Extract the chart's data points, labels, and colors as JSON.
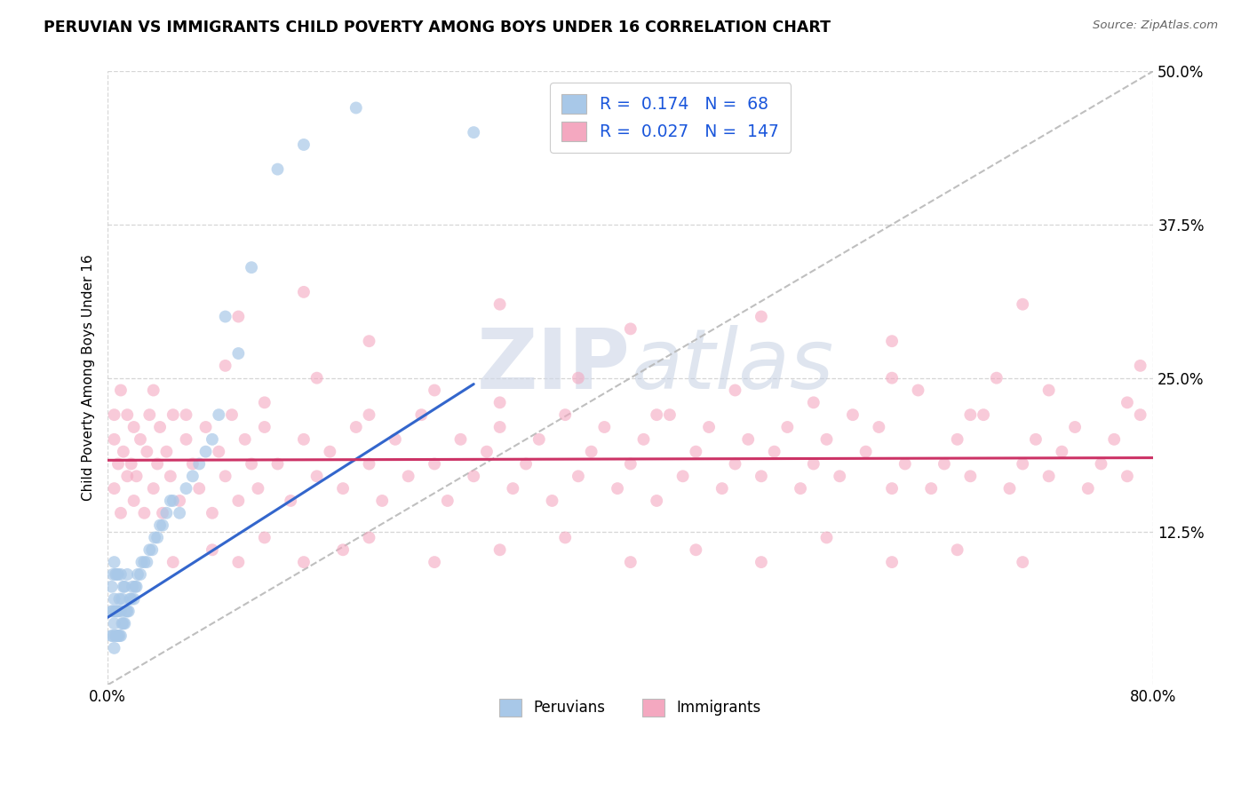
{
  "title": "PERUVIAN VS IMMIGRANTS CHILD POVERTY AMONG BOYS UNDER 16 CORRELATION CHART",
  "source": "Source: ZipAtlas.com",
  "ylabel": "Child Poverty Among Boys Under 16",
  "xlim": [
    0.0,
    0.8
  ],
  "ylim": [
    0.0,
    0.5
  ],
  "xtick_positions": [
    0.0,
    0.8
  ],
  "xticklabels": [
    "0.0%",
    "80.0%"
  ],
  "ytick_positions": [
    0.125,
    0.25,
    0.375,
    0.5
  ],
  "ytick_labels": [
    "12.5%",
    "25.0%",
    "37.5%",
    "50.0%"
  ],
  "legend_r_peru": "0.174",
  "legend_n_peru": "68",
  "legend_r_immig": "0.027",
  "legend_n_immig": "147",
  "color_peru": "#a8c8e8",
  "color_immig": "#f4a8c0",
  "line_peru": "#3366cc",
  "line_immig": "#cc3366",
  "line_diagonal": "#b8b8b8",
  "watermark_zip": "ZIP",
  "watermark_atlas": "atlas",
  "peru_x": [
    0.003,
    0.003,
    0.003,
    0.004,
    0.004,
    0.004,
    0.005,
    0.005,
    0.005,
    0.005,
    0.006,
    0.006,
    0.006,
    0.007,
    0.007,
    0.007,
    0.008,
    0.008,
    0.008,
    0.009,
    0.009,
    0.01,
    0.01,
    0.01,
    0.011,
    0.011,
    0.012,
    0.012,
    0.013,
    0.013,
    0.014,
    0.015,
    0.015,
    0.016,
    0.017,
    0.018,
    0.019,
    0.02,
    0.021,
    0.022,
    0.023,
    0.025,
    0.026,
    0.028,
    0.03,
    0.032,
    0.034,
    0.036,
    0.038,
    0.04,
    0.042,
    0.045,
    0.048,
    0.05,
    0.055,
    0.06,
    0.065,
    0.07,
    0.075,
    0.08,
    0.085,
    0.09,
    0.1,
    0.11,
    0.13,
    0.15,
    0.19,
    0.28
  ],
  "peru_y": [
    0.04,
    0.06,
    0.08,
    0.04,
    0.06,
    0.09,
    0.03,
    0.05,
    0.07,
    0.1,
    0.04,
    0.06,
    0.09,
    0.04,
    0.06,
    0.09,
    0.04,
    0.06,
    0.09,
    0.04,
    0.07,
    0.04,
    0.06,
    0.09,
    0.05,
    0.07,
    0.05,
    0.08,
    0.05,
    0.08,
    0.06,
    0.06,
    0.09,
    0.06,
    0.07,
    0.07,
    0.08,
    0.07,
    0.08,
    0.08,
    0.09,
    0.09,
    0.1,
    0.1,
    0.1,
    0.11,
    0.11,
    0.12,
    0.12,
    0.13,
    0.13,
    0.14,
    0.15,
    0.15,
    0.14,
    0.16,
    0.17,
    0.18,
    0.19,
    0.2,
    0.22,
    0.3,
    0.27,
    0.34,
    0.42,
    0.44,
    0.47,
    0.45
  ],
  "immig_x": [
    0.005,
    0.005,
    0.005,
    0.008,
    0.01,
    0.01,
    0.012,
    0.015,
    0.015,
    0.018,
    0.02,
    0.02,
    0.022,
    0.025,
    0.028,
    0.03,
    0.032,
    0.035,
    0.038,
    0.04,
    0.042,
    0.045,
    0.048,
    0.05,
    0.055,
    0.06,
    0.065,
    0.07,
    0.075,
    0.08,
    0.085,
    0.09,
    0.095,
    0.1,
    0.105,
    0.11,
    0.115,
    0.12,
    0.13,
    0.14,
    0.15,
    0.16,
    0.17,
    0.18,
    0.19,
    0.2,
    0.21,
    0.22,
    0.23,
    0.24,
    0.25,
    0.26,
    0.27,
    0.28,
    0.29,
    0.3,
    0.31,
    0.32,
    0.33,
    0.34,
    0.35,
    0.36,
    0.37,
    0.38,
    0.39,
    0.4,
    0.41,
    0.42,
    0.43,
    0.44,
    0.45,
    0.46,
    0.47,
    0.48,
    0.49,
    0.5,
    0.51,
    0.52,
    0.53,
    0.54,
    0.55,
    0.56,
    0.57,
    0.58,
    0.59,
    0.6,
    0.61,
    0.62,
    0.63,
    0.64,
    0.65,
    0.66,
    0.67,
    0.68,
    0.69,
    0.7,
    0.71,
    0.72,
    0.73,
    0.74,
    0.75,
    0.76,
    0.77,
    0.78,
    0.79,
    0.79,
    0.05,
    0.08,
    0.1,
    0.12,
    0.15,
    0.18,
    0.2,
    0.25,
    0.3,
    0.35,
    0.4,
    0.45,
    0.5,
    0.55,
    0.6,
    0.65,
    0.7,
    0.035,
    0.06,
    0.09,
    0.12,
    0.16,
    0.2,
    0.25,
    0.3,
    0.36,
    0.42,
    0.48,
    0.54,
    0.6,
    0.66,
    0.72,
    0.78,
    0.1,
    0.15,
    0.2,
    0.3,
    0.4,
    0.5,
    0.6,
    0.7,
    0.78,
    0.25,
    0.35,
    0.45,
    0.55,
    0.65,
    0.75
  ],
  "immig_y": [
    0.2,
    0.16,
    0.22,
    0.18,
    0.24,
    0.14,
    0.19,
    0.17,
    0.22,
    0.18,
    0.15,
    0.21,
    0.17,
    0.2,
    0.14,
    0.19,
    0.22,
    0.16,
    0.18,
    0.21,
    0.14,
    0.19,
    0.17,
    0.22,
    0.15,
    0.2,
    0.18,
    0.16,
    0.21,
    0.14,
    0.19,
    0.17,
    0.22,
    0.15,
    0.2,
    0.18,
    0.16,
    0.21,
    0.18,
    0.15,
    0.2,
    0.17,
    0.19,
    0.16,
    0.21,
    0.18,
    0.15,
    0.2,
    0.17,
    0.22,
    0.18,
    0.15,
    0.2,
    0.17,
    0.19,
    0.21,
    0.16,
    0.18,
    0.2,
    0.15,
    0.22,
    0.17,
    0.19,
    0.21,
    0.16,
    0.18,
    0.2,
    0.15,
    0.22,
    0.17,
    0.19,
    0.21,
    0.16,
    0.18,
    0.2,
    0.17,
    0.19,
    0.21,
    0.16,
    0.18,
    0.2,
    0.17,
    0.22,
    0.19,
    0.21,
    0.16,
    0.18,
    0.24,
    0.16,
    0.18,
    0.2,
    0.17,
    0.22,
    0.25,
    0.16,
    0.18,
    0.2,
    0.17,
    0.19,
    0.21,
    0.16,
    0.18,
    0.2,
    0.17,
    0.22,
    0.26,
    0.1,
    0.11,
    0.1,
    0.12,
    0.1,
    0.11,
    0.12,
    0.1,
    0.11,
    0.12,
    0.1,
    0.11,
    0.1,
    0.12,
    0.1,
    0.11,
    0.1,
    0.24,
    0.22,
    0.26,
    0.23,
    0.25,
    0.22,
    0.24,
    0.23,
    0.25,
    0.22,
    0.24,
    0.23,
    0.25,
    0.22,
    0.24,
    0.23,
    0.3,
    0.32,
    0.28,
    0.31,
    0.29,
    0.3,
    0.28,
    0.31,
    0.07,
    0.08,
    0.07,
    0.09,
    0.08,
    0.07,
    0.09
  ]
}
